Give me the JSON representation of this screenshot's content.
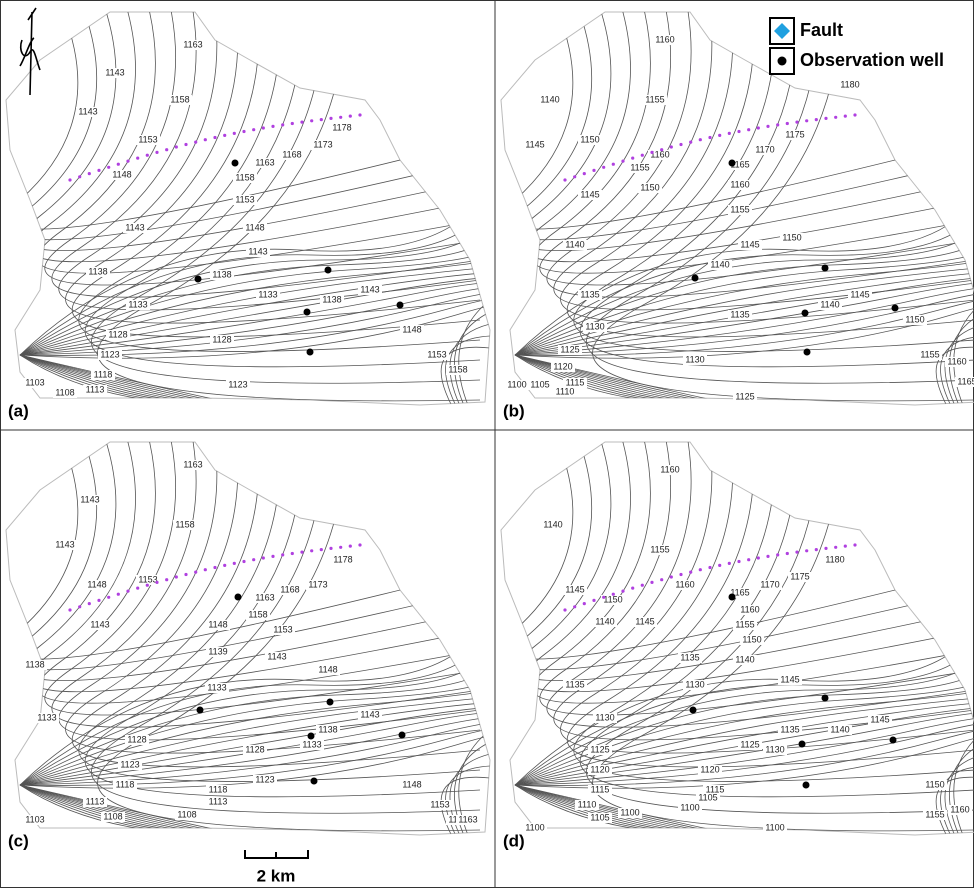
{
  "legend": {
    "items": [
      "Fault",
      "Observation well"
    ]
  },
  "scale_bar": {
    "label": "2 km"
  },
  "panels": [
    {
      "label": "(a)",
      "contour_labels": [
        "1163",
        "1143",
        "1143",
        "1158",
        "1153",
        "1148",
        "1178",
        "1173",
        "1168",
        "1163",
        "1158",
        "1153",
        "1148",
        "1143",
        "1143",
        "1138",
        "1138",
        "1133",
        "1133",
        "1138",
        "1143",
        "1148",
        "1128",
        "1128",
        "1123",
        "1118",
        "1113",
        "1108",
        "1103",
        "1123",
        "1153",
        "1158"
      ]
    },
    {
      "label": "(b)",
      "contour_labels": [
        "1160",
        "1140",
        "1155",
        "1145",
        "1150",
        "1160",
        "1180",
        "1175",
        "1170",
        "1165",
        "1160",
        "1155",
        "1155",
        "1150",
        "1145",
        "1150",
        "1145",
        "1140",
        "1140",
        "1145",
        "1140",
        "1135",
        "1135",
        "1130",
        "1130",
        "1125",
        "1120",
        "1115",
        "1110",
        "1105",
        "1100",
        "1125",
        "1150",
        "1155",
        "1160",
        "1165"
      ]
    },
    {
      "label": "(c)",
      "contour_labels": [
        "1163",
        "1143",
        "1143",
        "1158",
        "1153",
        "1148",
        "1178",
        "1173",
        "1168",
        "1163",
        "1158",
        "1153",
        "1148",
        "1143",
        "1139",
        "1143",
        "1148",
        "1138",
        "1133",
        "1133",
        "1138",
        "1143",
        "1133",
        "1128",
        "1128",
        "1123",
        "1123",
        "1118",
        "1118",
        "1113",
        "1113",
        "1108",
        "1108",
        "1103",
        "1148",
        "1153",
        "1158",
        "1163"
      ]
    },
    {
      "label": "(d)",
      "contour_labels": [
        "1160",
        "1140",
        "1155",
        "1145",
        "1150",
        "1160",
        "1180",
        "1175",
        "1170",
        "1165",
        "1160",
        "1155",
        "1150",
        "1145",
        "1140",
        "1135",
        "1140",
        "1145",
        "1130",
        "1135",
        "1130",
        "1140",
        "1145",
        "1125",
        "1125",
        "1135",
        "1130",
        "1120",
        "1120",
        "1115",
        "1115",
        "1110",
        "1105",
        "1105",
        "1100",
        "1100",
        "1100",
        "1100",
        "1150",
        "1155",
        "1160"
      ]
    }
  ]
}
